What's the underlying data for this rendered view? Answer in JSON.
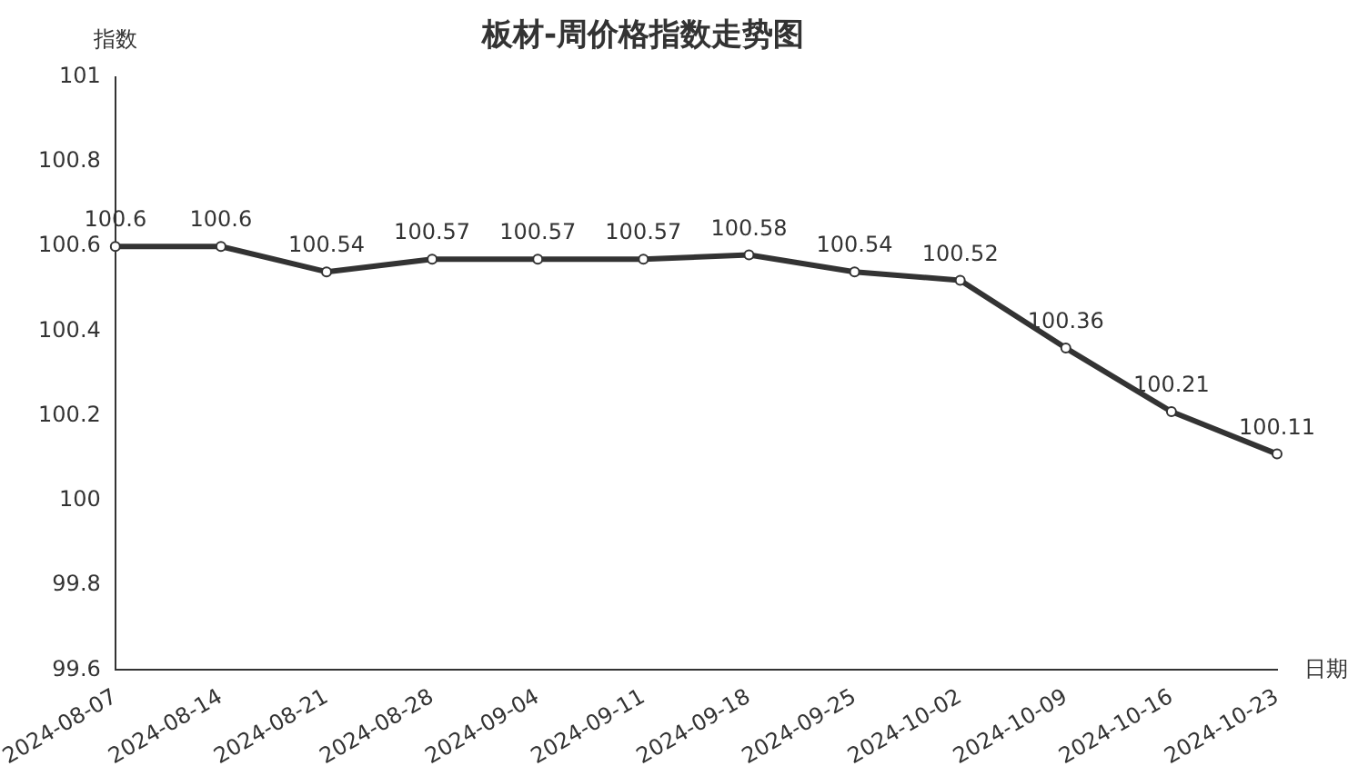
{
  "chart_data": {
    "type": "line",
    "title": "板材-周价格指数走势图",
    "xlabel": "日期",
    "ylabel": "指数",
    "categories": [
      "2024-08-07",
      "2024-08-14",
      "2024-08-21",
      "2024-08-28",
      "2024-09-04",
      "2024-09-11",
      "2024-09-18",
      "2024-09-25",
      "2024-10-02",
      "2024-10-09",
      "2024-10-16",
      "2024-10-23"
    ],
    "series": [
      {
        "color": "#333333",
        "values": [
          100.6,
          100.6,
          100.54,
          100.57,
          100.57,
          100.57,
          100.58,
          100.54,
          100.52,
          100.36,
          100.21,
          100.11
        ]
      }
    ],
    "ylim": [
      99.6,
      101
    ],
    "yticks": [
      99.6,
      99.8,
      100,
      100.2,
      100.4,
      100.6,
      100.8,
      101
    ],
    "grid": false,
    "legend": false,
    "marker": "circle",
    "line_style": "solid",
    "data_labels": true
  }
}
